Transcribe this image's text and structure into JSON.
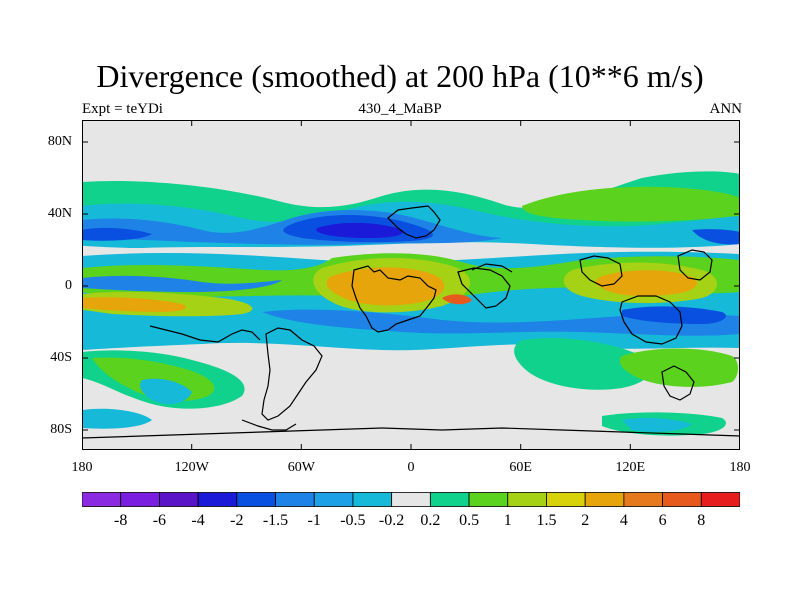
{
  "header": {
    "title": "Divergence (smoothed) at 200 hPa (10**6 m/s)",
    "left_label": "Expt = teYDi",
    "center_label": "430_4_MaBP",
    "right_label": "ANN"
  },
  "axes": {
    "y_ticks": [
      "80N",
      "40N",
      "0",
      "40S",
      "80S"
    ],
    "x_ticks": [
      "180",
      "120W",
      "60W",
      "0",
      "60E",
      "120E",
      "180"
    ]
  },
  "colorbar": {
    "colors": [
      "#8a2be2",
      "#7a1fe0",
      "#5a14c8",
      "#1a1ad8",
      "#0a50e0",
      "#1e82e6",
      "#1ea0e6",
      "#16b9d8",
      "#e6e6e6",
      "#10d28c",
      "#5ad21e",
      "#a5d214",
      "#d7d20a",
      "#e6a50a",
      "#e6781e",
      "#e65a1e",
      "#e61e1e"
    ],
    "labels": [
      "-8",
      "-6",
      "-4",
      "-2",
      "-1.5",
      "-1",
      "-0.5",
      "-0.2",
      "0.2",
      "0.5",
      "1",
      "1.5",
      "2",
      "4",
      "6",
      "8"
    ]
  },
  "field_colors": {
    "background": "#e6e6e6",
    "teal": "#10d28c",
    "green": "#5ad21e",
    "yellow_green": "#a5d214",
    "orange": "#e6a50a",
    "red": "#e65a1e",
    "cyan": "#16b9d8",
    "light_blue": "#1e82e6",
    "blue": "#0a50e0",
    "dark_blue": "#1a1ad8"
  }
}
